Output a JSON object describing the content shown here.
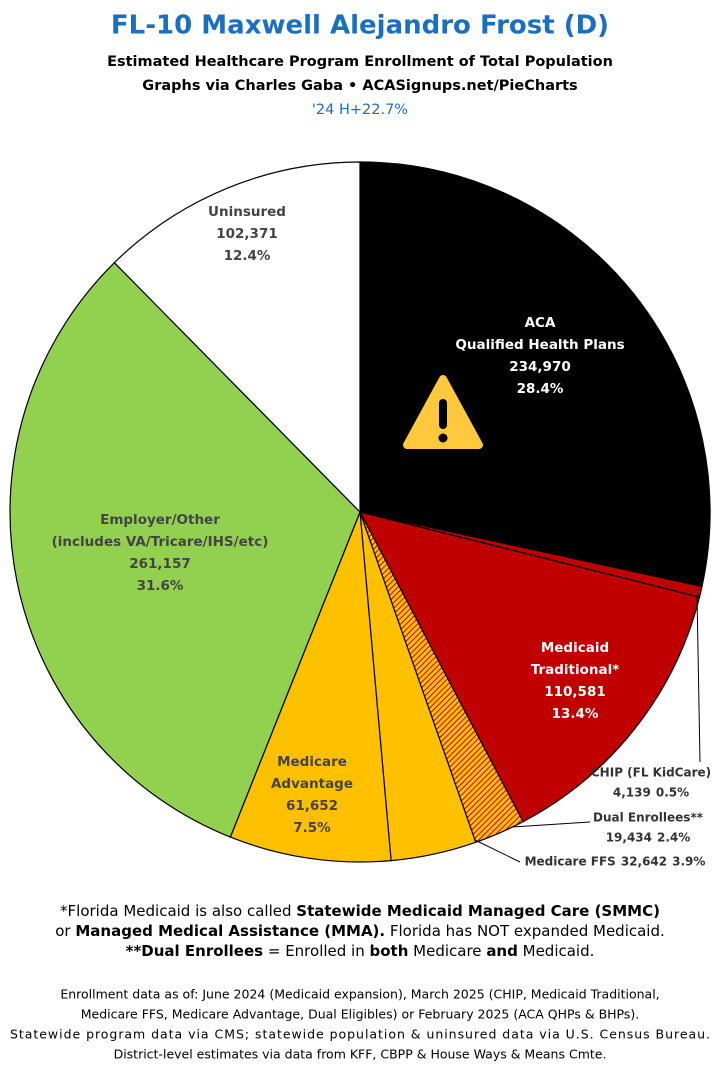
{
  "chart_data": {
    "type": "pie",
    "title": "FL-10 Maxwell Alejandro Frost (D)",
    "subtitle": [
      "Estimated Healthcare Program Enrollment of Total Population",
      "Graphs via Charles Gaba  •  ACASignups.net/PieCharts",
      "'24 H+22.7%"
    ],
    "categories": [
      [
        "ACA",
        "Qualified Health Plans"
      ],
      [
        "CHIP (FL KidCare)"
      ],
      [
        "Medicaid",
        "Traditional*"
      ],
      [
        "Dual Enrollees**"
      ],
      [
        "Medicare FFS"
      ],
      [
        "Medicare",
        "Advantage"
      ],
      [
        "Employer/Other",
        "(includes VA/Tricare/IHS/etc)"
      ],
      [
        "Uninsured"
      ]
    ],
    "values": [
      234970,
      4139,
      110581,
      19434,
      32642,
      61652,
      261157,
      102371
    ],
    "value_labels": [
      "234,970",
      "4,139",
      "110,581",
      "19,434",
      "32,642",
      "61,652",
      "261,157",
      "102,371"
    ],
    "percents": [
      28.4,
      0.5,
      13.4,
      2.4,
      3.9,
      7.5,
      31.6,
      12.4
    ],
    "percent_labels": [
      "28.4%",
      "0.5%",
      "13.4%",
      "2.4%",
      "3.9%",
      "7.5%",
      "31.6%",
      "12.4%"
    ],
    "colors": [
      "#000000",
      "#c00000",
      "#c00000",
      "#ffc000",
      "#ffc000",
      "#ffc000",
      "#92d050",
      "#ffffff"
    ],
    "hatched": [
      false,
      false,
      false,
      true,
      false,
      false,
      false,
      false
    ],
    "notes": [
      [
        {
          "text": "*Florida Medicaid is also called ",
          "bold": false
        },
        {
          "text": "Statewide Medicaid Managed Care (SMMC)",
          "bold": true
        }
      ],
      [
        {
          "text": "or ",
          "bold": false
        },
        {
          "text": "Managed Medical Assistance (MMA).",
          "bold": true
        },
        {
          "text": " Florida has NOT expanded Medicaid.",
          "bold": false
        }
      ],
      [
        {
          "text": "**Dual Enrollees",
          "bold": true
        },
        {
          "text": " = Enrolled in ",
          "bold": false
        },
        {
          "text": "both",
          "bold": true
        },
        {
          "text": " Medicare ",
          "bold": false
        },
        {
          "text": "and",
          "bold": true
        },
        {
          "text": " Medicaid.",
          "bold": false
        }
      ]
    ],
    "sources": [
      "Enrollment data as of: June 2024 (Medicaid expansion), March 2025 (CHIP, Medicaid Traditional,",
      "Medicare FFS, Medicare Advantage, Dual Eligibles) or February 2025 (ACA QHPs & BHPs).",
      "Statewide program data via CMS; statewide population & uninsured data via U.S. Census Bureau.",
      "District-level estimates via data from KFF, CBPP & House Ways & Means Cmte."
    ]
  }
}
